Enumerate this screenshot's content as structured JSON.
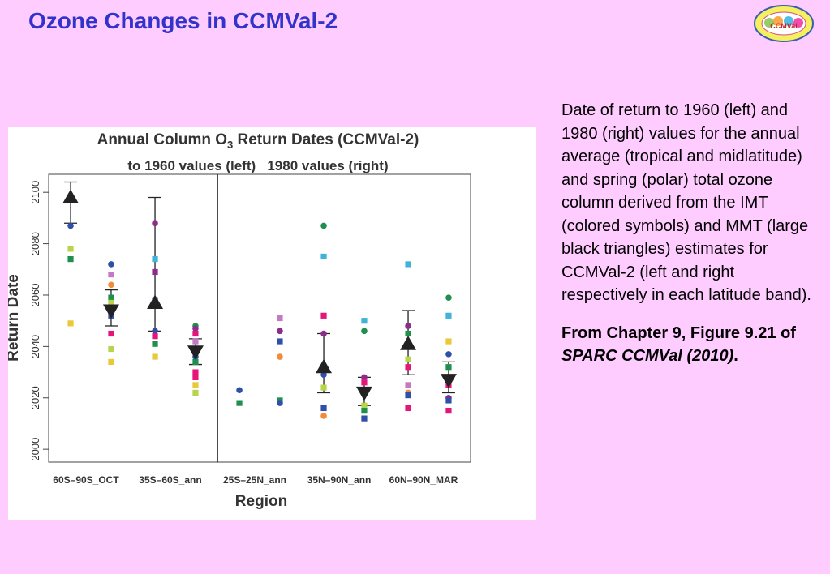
{
  "slide": {
    "title": "Ozone Changes in CCMVal-2"
  },
  "logo": {
    "text": "CCMVal",
    "ring_text": "Chemistry-Climate Model Validation Activity for SPARC"
  },
  "caption": {
    "body": "Date of return to 1960 (left) and 1980 (right) values for the annual average (tropical and midlatitude) and spring (polar) total ozone column derived from the IMT (colored symbols) and MMT (large black triangles) estimates for CCMVal-2 (left and right respectively in each latitude band).",
    "source_prefix": "From Chapter 9, Figure 9.21 of ",
    "source_italic": "SPARC CCMVal (2010)",
    "source_suffix": "."
  },
  "chart_data": {
    "type": "scatter",
    "title": "Annual Column O3 Return Dates (CCMVal-2)",
    "title_main": "Annual Column O",
    "title_sub": "3",
    "title_tail": " Return Dates (CCMVal-2)",
    "subtitle": "to 1960 values (left)   1980 values (right)",
    "xlabel": "Region",
    "ylabel": "Return Date",
    "ylim": [
      1995,
      2107
    ],
    "yticks": [
      2000,
      2020,
      2040,
      2060,
      2080,
      2100
    ],
    "categories": [
      "60S–90S_OCT",
      "35S–60S_ann",
      "25S–25N_ann",
      "35N–90N_ann",
      "60N–90N_MAR"
    ],
    "divider_between": [
      "35S–60S_ann",
      "25S–25N_ann"
    ],
    "legend": "none",
    "grid": false,
    "mmt": [
      {
        "category": "60S–90S_OCT",
        "target": "1960",
        "value": 2098,
        "lower": 2088,
        "upper": 2104
      },
      {
        "category": "60S–90S_OCT",
        "target": "1980",
        "value": 2054,
        "lower": 2048,
        "upper": 2062
      },
      {
        "category": "35S–60S_ann",
        "target": "1960",
        "value": 2057,
        "lower": 2046,
        "upper": 2098
      },
      {
        "category": "35S–60S_ann",
        "target": "1980",
        "value": 2038,
        "lower": 2033,
        "upper": 2043
      },
      {
        "category": "35N–90N_ann",
        "target": "1960",
        "value": 2032,
        "lower": 2022,
        "upper": 2045
      },
      {
        "category": "35N–90N_ann",
        "target": "1980",
        "value": 2022,
        "lower": 2017,
        "upper": 2028
      },
      {
        "category": "60N–90N_MAR",
        "target": "1960",
        "value": 2041,
        "lower": 2029,
        "upper": 2054
      },
      {
        "category": "60N–90N_MAR",
        "target": "1980",
        "value": 2027,
        "lower": 2022,
        "upper": 2034
      }
    ],
    "imt_points": [
      {
        "category": "60S–90S_OCT",
        "target": "1960",
        "shape": "square",
        "color": "#e6157a",
        "value": 2097
      },
      {
        "category": "60S–90S_OCT",
        "target": "1960",
        "shape": "circle",
        "color": "#2f4fa8",
        "value": 2087
      },
      {
        "category": "60S–90S_OCT",
        "target": "1960",
        "shape": "square",
        "color": "#b8d44c",
        "value": 2078
      },
      {
        "category": "60S–90S_OCT",
        "target": "1960",
        "shape": "square",
        "color": "#1f8f4e",
        "value": 2074
      },
      {
        "category": "60S–90S_OCT",
        "target": "1960",
        "shape": "square",
        "color": "#e8c93a",
        "value": 2049
      },
      {
        "category": "60S–90S_OCT",
        "target": "1980",
        "shape": "circle",
        "color": "#2f4fa8",
        "value": 2072
      },
      {
        "category": "60S–90S_OCT",
        "target": "1980",
        "shape": "square",
        "color": "#c47ac0",
        "value": 2068
      },
      {
        "category": "60S–90S_OCT",
        "target": "1980",
        "shape": "circle",
        "color": "#f08c3c",
        "value": 2064
      },
      {
        "category": "60S–90S_OCT",
        "target": "1980",
        "shape": "square",
        "color": "#1f8f4e",
        "value": 2059
      },
      {
        "category": "60S–90S_OCT",
        "target": "1980",
        "shape": "square",
        "color": "#b8d44c",
        "value": 2057
      },
      {
        "category": "60S–90S_OCT",
        "target": "1980",
        "shape": "square",
        "color": "#2f4fa8",
        "value": 2052
      },
      {
        "category": "60S–90S_OCT",
        "target": "1980",
        "shape": "square",
        "color": "#e6157a",
        "value": 2045
      },
      {
        "category": "60S–90S_OCT",
        "target": "1980",
        "shape": "square",
        "color": "#b8d44c",
        "value": 2039
      },
      {
        "category": "60S–90S_OCT",
        "target": "1980",
        "shape": "square",
        "color": "#e8c93a",
        "value": 2034
      },
      {
        "category": "35S–60S_ann",
        "target": "1960",
        "shape": "circle",
        "color": "#8b2d8b",
        "value": 2088
      },
      {
        "category": "35S–60S_ann",
        "target": "1960",
        "shape": "square",
        "color": "#3fb3d9",
        "value": 2074
      },
      {
        "category": "35S–60S_ann",
        "target": "1960",
        "shape": "square",
        "color": "#8b2d8b",
        "value": 2069
      },
      {
        "category": "35S–60S_ann",
        "target": "1960",
        "shape": "square",
        "color": "#2f4fa8",
        "value": 2058
      },
      {
        "category": "35S–60S_ann",
        "target": "1960",
        "shape": "circle",
        "color": "#2f4fa8",
        "value": 2046
      },
      {
        "category": "35S–60S_ann",
        "target": "1960",
        "shape": "square",
        "color": "#e6157a",
        "value": 2044
      },
      {
        "category": "35S–60S_ann",
        "target": "1960",
        "shape": "square",
        "color": "#1f8f4e",
        "value": 2041
      },
      {
        "category": "35S–60S_ann",
        "target": "1960",
        "shape": "square",
        "color": "#e8c93a",
        "value": 2036
      },
      {
        "category": "35S–60S_ann",
        "target": "1980",
        "shape": "circle",
        "color": "#1f8f4e",
        "value": 2048
      },
      {
        "category": "35S–60S_ann",
        "target": "1980",
        "shape": "circle",
        "color": "#8b2d8b",
        "value": 2047
      },
      {
        "category": "35S–60S_ann",
        "target": "1980",
        "shape": "square",
        "color": "#e6157a",
        "value": 2045
      },
      {
        "category": "35S–60S_ann",
        "target": "1980",
        "shape": "square",
        "color": "#c47ac0",
        "value": 2042
      },
      {
        "category": "35S–60S_ann",
        "target": "1980",
        "shape": "circle",
        "color": "#2f4fa8",
        "value": 2036
      },
      {
        "category": "35S–60S_ann",
        "target": "1980",
        "shape": "square",
        "color": "#1f8f4e",
        "value": 2034
      },
      {
        "category": "35S–60S_ann",
        "target": "1980",
        "shape": "square",
        "color": "#e6157a",
        "value": 2030
      },
      {
        "category": "35S–60S_ann",
        "target": "1980",
        "shape": "square",
        "color": "#e6157a",
        "value": 2028
      },
      {
        "category": "35S–60S_ann",
        "target": "1980",
        "shape": "square",
        "color": "#e8c93a",
        "value": 2025
      },
      {
        "category": "35S–60S_ann",
        "target": "1980",
        "shape": "square",
        "color": "#b8d44c",
        "value": 2022
      },
      {
        "category": "25S–25N_ann",
        "target": "1960",
        "shape": "circle",
        "color": "#2f4fa8",
        "value": 2023
      },
      {
        "category": "25S–25N_ann",
        "target": "1960",
        "shape": "square",
        "color": "#1f8f4e",
        "value": 2018
      },
      {
        "category": "25S–25N_ann",
        "target": "1980",
        "shape": "square",
        "color": "#c47ac0",
        "value": 2051
      },
      {
        "category": "25S–25N_ann",
        "target": "1980",
        "shape": "circle",
        "color": "#8b2d8b",
        "value": 2046
      },
      {
        "category": "25S–25N_ann",
        "target": "1980",
        "shape": "square",
        "color": "#2f4fa8",
        "value": 2042
      },
      {
        "category": "25S–25N_ann",
        "target": "1980",
        "shape": "circle",
        "color": "#f08c3c",
        "value": 2036
      },
      {
        "category": "25S–25N_ann",
        "target": "1980",
        "shape": "square",
        "color": "#1f8f4e",
        "value": 2019
      },
      {
        "category": "25S–25N_ann",
        "target": "1980",
        "shape": "circle",
        "color": "#2f4fa8",
        "value": 2018
      },
      {
        "category": "35N–90N_ann",
        "target": "1960",
        "shape": "circle",
        "color": "#1f8f4e",
        "value": 2087
      },
      {
        "category": "35N–90N_ann",
        "target": "1960",
        "shape": "square",
        "color": "#3fb3d9",
        "value": 2075
      },
      {
        "category": "35N–90N_ann",
        "target": "1960",
        "shape": "square",
        "color": "#e6157a",
        "value": 2052
      },
      {
        "category": "35N–90N_ann",
        "target": "1960",
        "shape": "circle",
        "color": "#8b2d8b",
        "value": 2045
      },
      {
        "category": "35N–90N_ann",
        "target": "1960",
        "shape": "circle",
        "color": "#2f4fa8",
        "value": 2029
      },
      {
        "category": "35N–90N_ann",
        "target": "1960",
        "shape": "square",
        "color": "#b8d44c",
        "value": 2024
      },
      {
        "category": "35N–90N_ann",
        "target": "1960",
        "shape": "square",
        "color": "#2f4fa8",
        "value": 2016
      },
      {
        "category": "35N–90N_ann",
        "target": "1960",
        "shape": "circle",
        "color": "#f08c3c",
        "value": 2013
      },
      {
        "category": "35N–90N_ann",
        "target": "1980",
        "shape": "square",
        "color": "#3fb3d9",
        "value": 2050
      },
      {
        "category": "35N–90N_ann",
        "target": "1980",
        "shape": "circle",
        "color": "#1f8f4e",
        "value": 2046
      },
      {
        "category": "35N–90N_ann",
        "target": "1980",
        "shape": "circle",
        "color": "#8b2d8b",
        "value": 2028
      },
      {
        "category": "35N–90N_ann",
        "target": "1980",
        "shape": "square",
        "color": "#e6157a",
        "value": 2026
      },
      {
        "category": "35N–90N_ann",
        "target": "1980",
        "shape": "square",
        "color": "#b8d44c",
        "value": 2017
      },
      {
        "category": "35N–90N_ann",
        "target": "1980",
        "shape": "square",
        "color": "#1f8f4e",
        "value": 2015
      },
      {
        "category": "35N–90N_ann",
        "target": "1980",
        "shape": "square",
        "color": "#2f4fa8",
        "value": 2012
      },
      {
        "category": "60N–90N_MAR",
        "target": "1960",
        "shape": "square",
        "color": "#3fb3d9",
        "value": 2072
      },
      {
        "category": "60N–90N_MAR",
        "target": "1960",
        "shape": "circle",
        "color": "#8b2d8b",
        "value": 2048
      },
      {
        "category": "60N–90N_MAR",
        "target": "1960",
        "shape": "square",
        "color": "#1f8f4e",
        "value": 2045
      },
      {
        "category": "60N–90N_MAR",
        "target": "1960",
        "shape": "square",
        "color": "#b8d44c",
        "value": 2035
      },
      {
        "category": "60N–90N_MAR",
        "target": "1960",
        "shape": "square",
        "color": "#e6157a",
        "value": 2032
      },
      {
        "category": "60N–90N_MAR",
        "target": "1960",
        "shape": "square",
        "color": "#c47ac0",
        "value": 2025
      },
      {
        "category": "60N–90N_MAR",
        "target": "1960",
        "shape": "circle",
        "color": "#f08c3c",
        "value": 2022
      },
      {
        "category": "60N–90N_MAR",
        "target": "1960",
        "shape": "square",
        "color": "#2f4fa8",
        "value": 2021
      },
      {
        "category": "60N–90N_MAR",
        "target": "1960",
        "shape": "square",
        "color": "#e6157a",
        "value": 2016
      },
      {
        "category": "60N–90N_MAR",
        "target": "1980",
        "shape": "circle",
        "color": "#1f8f4e",
        "value": 2059
      },
      {
        "category": "60N–90N_MAR",
        "target": "1980",
        "shape": "square",
        "color": "#3fb3d9",
        "value": 2052
      },
      {
        "category": "60N–90N_MAR",
        "target": "1980",
        "shape": "square",
        "color": "#e8c93a",
        "value": 2042
      },
      {
        "category": "60N–90N_MAR",
        "target": "1980",
        "shape": "circle",
        "color": "#2f4fa8",
        "value": 2037
      },
      {
        "category": "60N–90N_MAR",
        "target": "1980",
        "shape": "square",
        "color": "#1f8f4e",
        "value": 2032
      },
      {
        "category": "60N–90N_MAR",
        "target": "1980",
        "shape": "square",
        "color": "#b8d44c",
        "value": 2028
      },
      {
        "category": "60N–90N_MAR",
        "target": "1980",
        "shape": "square",
        "color": "#e6157a",
        "value": 2025
      },
      {
        "category": "60N–90N_MAR",
        "target": "1980",
        "shape": "circle",
        "color": "#8b2d8b",
        "value": 2020
      },
      {
        "category": "60N–90N_MAR",
        "target": "1980",
        "shape": "square",
        "color": "#2f4fa8",
        "value": 2019
      },
      {
        "category": "60N–90N_MAR",
        "target": "1980",
        "shape": "square",
        "color": "#e6157a",
        "value": 2015
      }
    ]
  }
}
